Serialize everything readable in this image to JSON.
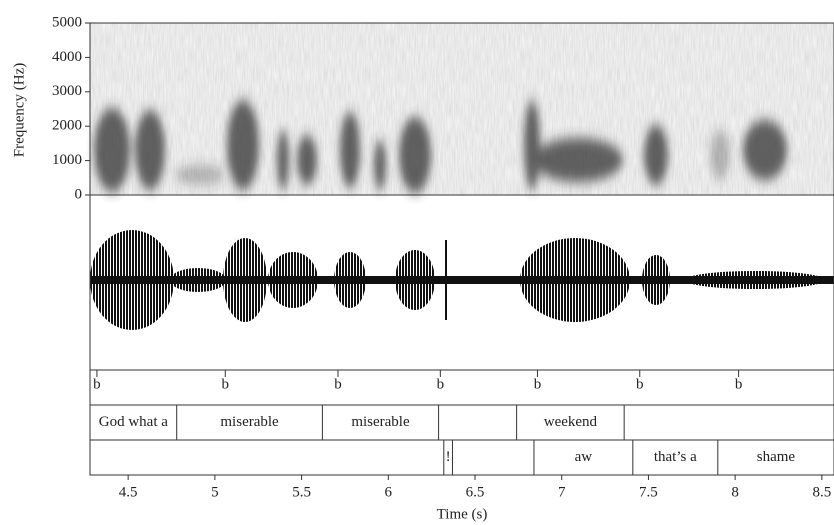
{
  "chart_data": {
    "type": "spectrogram",
    "ylabel": "Frequency (Hz)",
    "xlabel": "Time (s)",
    "ylim": [
      0,
      5000
    ],
    "yticks": [
      0,
      1000,
      2000,
      3000,
      4000,
      5000
    ],
    "xlim": [
      4.28,
      8.57
    ],
    "xticks": [
      4.5,
      5,
      5.5,
      6,
      6.5,
      7,
      7.5,
      8,
      8.5
    ],
    "tiers": [
      {
        "points": [
          {
            "time": 4.32,
            "label": "b"
          },
          {
            "time": 5.06,
            "label": "b"
          },
          {
            "time": 5.71,
            "label": "b"
          },
          {
            "time": 6.3,
            "label": "b"
          },
          {
            "time": 6.86,
            "label": "b"
          },
          {
            "time": 7.45,
            "label": "b"
          },
          {
            "time": 8.02,
            "label": "b"
          }
        ]
      },
      {
        "boundaries": [
          4.78,
          5.62,
          6.29,
          6.74,
          7.36
        ],
        "intervals": [
          {
            "text": "God what a",
            "start": 4.28,
            "end": 4.78
          },
          {
            "text": "miserable",
            "start": 4.78,
            "end": 5.62
          },
          {
            "text": "miserable",
            "start": 5.62,
            "end": 6.29
          },
          {
            "text": "weekend",
            "start": 6.74,
            "end": 7.36
          }
        ]
      },
      {
        "boundaries": [
          6.32,
          6.37,
          6.84,
          7.41,
          7.9
        ],
        "intervals": [
          {
            "text": "!",
            "start": 6.32,
            "end": 6.37
          },
          {
            "text": "aw",
            "start": 6.84,
            "end": 7.41
          },
          {
            "text": "that’s a",
            "start": 7.41,
            "end": 7.9
          },
          {
            "text": "shame",
            "start": 7.9,
            "end": 8.57
          }
        ]
      }
    ]
  }
}
